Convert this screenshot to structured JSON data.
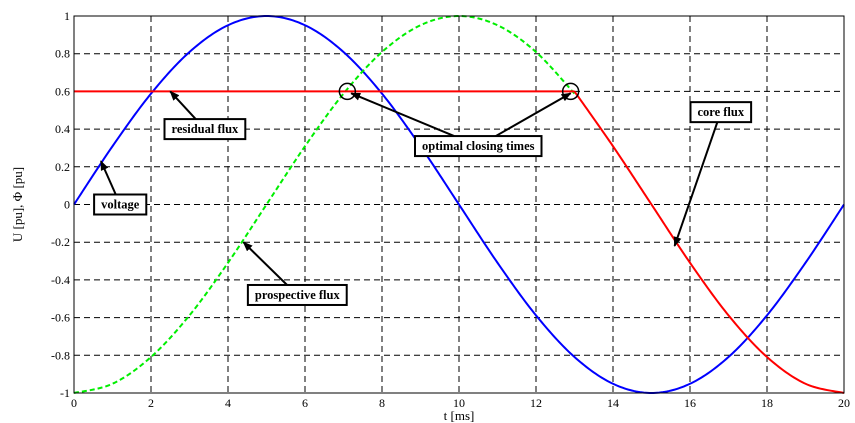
{
  "chart_data": {
    "type": "line",
    "xlabel": "t [ms]",
    "ylabel": "U [pu], Φ [pu]",
    "xlim": [
      0,
      20
    ],
    "ylim": [
      -1,
      1
    ],
    "grid": true,
    "x_ticks": [
      0,
      2,
      4,
      6,
      8,
      10,
      12,
      14,
      16,
      18,
      20
    ],
    "y_ticks": [
      -1,
      -0.8,
      -0.6,
      -0.4,
      -0.2,
      0,
      0.2,
      0.4,
      0.6,
      0.8,
      1
    ],
    "x_tick_labels": [
      "0",
      "2",
      "4",
      "6",
      "8",
      "10",
      "12",
      "14",
      "16",
      "18",
      "20"
    ],
    "y_tick_labels": [
      "-1",
      "-0.8",
      "-0.6",
      "-0.4",
      "-0.2",
      "0",
      "0.2",
      "0.4",
      "0.6",
      "0.8",
      "1"
    ],
    "series": [
      {
        "name": "voltage",
        "color": "#0000ff",
        "style": "solid",
        "x": [
          0,
          1,
          2,
          3,
          4,
          5,
          6,
          7,
          8,
          9,
          10,
          11,
          12,
          13,
          14,
          15,
          16,
          17,
          18,
          19,
          20
        ],
        "y": [
          0,
          0.309,
          0.588,
          0.809,
          0.951,
          1,
          0.951,
          0.809,
          0.588,
          0.309,
          0,
          -0.309,
          -0.588,
          -0.809,
          -0.951,
          -1,
          -0.951,
          -0.809,
          -0.588,
          -0.309,
          0
        ]
      },
      {
        "name": "prospective flux",
        "color": "#00ee00",
        "style": "dashed",
        "x": [
          0,
          1,
          2,
          3,
          4,
          5,
          6,
          7,
          8,
          9,
          10,
          11,
          12,
          13
        ],
        "y": [
          -1,
          -0.951,
          -0.809,
          -0.588,
          -0.309,
          0,
          0.309,
          0.588,
          0.809,
          0.951,
          1,
          0.951,
          0.809,
          0.588
        ]
      },
      {
        "name": "residual flux",
        "color": "#ff0000",
        "style": "solid",
        "x": [
          0,
          13
        ],
        "y": [
          0.6,
          0.6
        ]
      },
      {
        "name": "core flux",
        "color": "#ff0000",
        "style": "solid",
        "x": [
          13,
          14,
          15,
          16,
          17,
          18,
          19,
          20
        ],
        "y": [
          0.6,
          0.309,
          0,
          -0.309,
          -0.588,
          -0.809,
          -0.951,
          -1
        ]
      }
    ],
    "markers": [
      {
        "name": "optimal closing point 1",
        "x": 7.1,
        "y": 0.6
      },
      {
        "name": "optimal closing point 2",
        "x": 12.9,
        "y": 0.6
      }
    ],
    "annotations": [
      {
        "text": "voltage",
        "box_x": 1.2,
        "box_y": 0,
        "targets": [
          [
            0.7,
            0.23
          ]
        ]
      },
      {
        "text": "residual flux",
        "box_x": 3.4,
        "box_y": 0.4,
        "targets": [
          [
            2.5,
            0.6
          ]
        ]
      },
      {
        "text": "optimal closing times",
        "box_x": 10.5,
        "box_y": 0.31,
        "targets": [
          [
            7.2,
            0.59
          ],
          [
            12.9,
            0.59
          ]
        ]
      },
      {
        "text": "prospective flux",
        "box_x": 5.8,
        "box_y": -0.48,
        "targets": [
          [
            4.4,
            -0.2
          ]
        ]
      },
      {
        "text": "core flux",
        "box_x": 16.8,
        "box_y": 0.49,
        "targets": [
          [
            15.6,
            -0.22
          ]
        ]
      }
    ]
  }
}
